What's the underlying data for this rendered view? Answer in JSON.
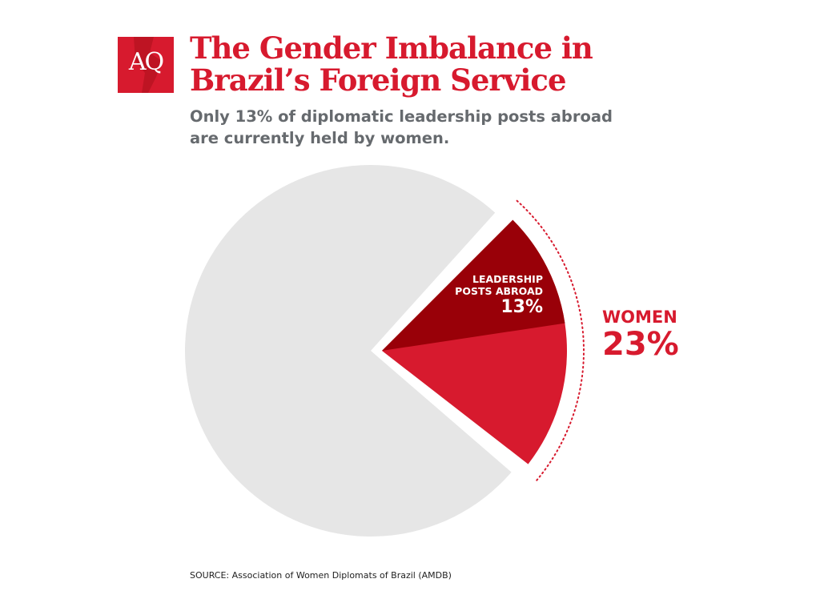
{
  "logo": {
    "text": "AQ"
  },
  "title_lines": [
    "The Gender Imbalance in",
    "Brazil’s Foreign Service"
  ],
  "subtitle_lines": [
    "Only 13% of diplomatic leadership posts abroad",
    "are currently held by women."
  ],
  "source": "SOURCE: Association of Women Diplomats of Brazil (AMDB)",
  "chart_data": {
    "type": "pie",
    "slices": [
      {
        "name": "WOMEN",
        "value": 23,
        "color": "#d71a2e",
        "exploded": true
      },
      {
        "name": "",
        "value": 77,
        "color": "#e6e6e6"
      }
    ],
    "sub_slice": {
      "name": "LEADERSHIP POSTS ABROAD",
      "value": 13,
      "color": "#990008",
      "within": "WOMEN"
    },
    "labels": {
      "leadership_lines": [
        "LEADERSHIP",
        "POSTS ABROAD"
      ],
      "leadership_pct": "13%",
      "women": "WOMEN",
      "women_pct": "23%"
    }
  }
}
